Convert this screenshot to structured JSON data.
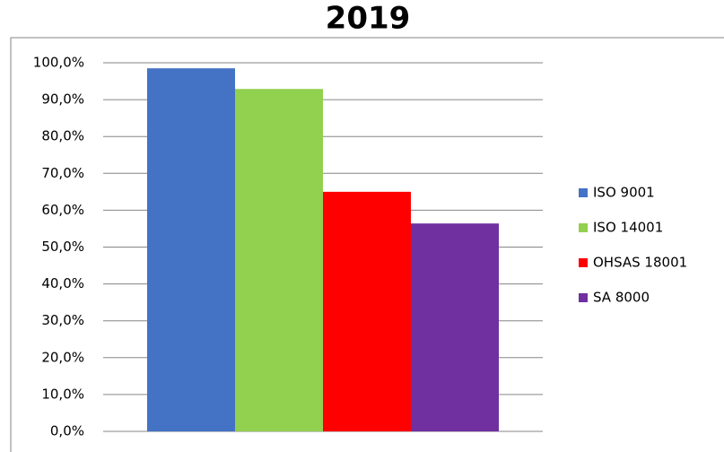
{
  "chart_data": {
    "type": "bar",
    "title": "2019",
    "categories": [
      null
    ],
    "series": [
      {
        "name": "ISO 9001",
        "color": "#4472c4",
        "values": [
          98.5
        ]
      },
      {
        "name": "ISO 14001",
        "color": "#92d050",
        "values": [
          92.9
        ]
      },
      {
        "name": "OHSAS 18001",
        "color": "#ff0000",
        "values": [
          65.0
        ]
      },
      {
        "name": "SA 8000",
        "color": "#7030a0",
        "values": [
          56.4
        ]
      }
    ],
    "ylim": [
      0,
      100
    ],
    "yticks": [
      {
        "value": 0,
        "label": "0,0%"
      },
      {
        "value": 10,
        "label": "10,0%"
      },
      {
        "value": 20,
        "label": "20,0%"
      },
      {
        "value": 30,
        "label": "30,0%"
      },
      {
        "value": 40,
        "label": "40,0%"
      },
      {
        "value": 50,
        "label": "50,0%"
      },
      {
        "value": 60,
        "label": "60,0%"
      },
      {
        "value": 70,
        "label": "70,0%"
      },
      {
        "value": 80,
        "label": "80,0%"
      },
      {
        "value": 90,
        "label": "90,0%"
      },
      {
        "value": 100,
        "label": "100,0%"
      }
    ],
    "grid": true,
    "legend": "right"
  }
}
